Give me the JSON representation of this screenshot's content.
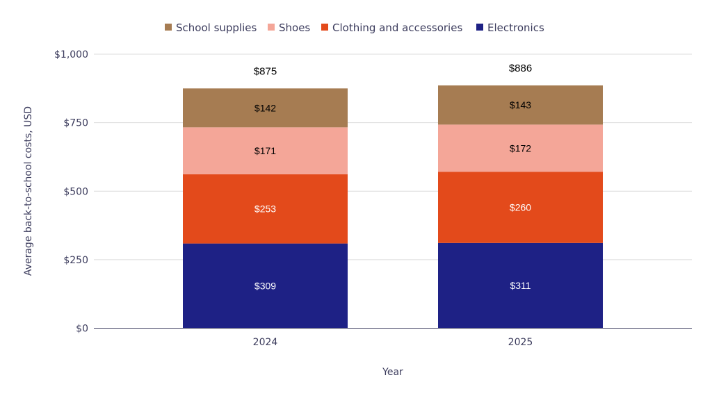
{
  "chart_data": {
    "type": "bar",
    "stacked": true,
    "categories": [
      "2024",
      "2025"
    ],
    "series": [
      {
        "name": "Electronics",
        "values": [
          309,
          311
        ],
        "color": "#1e2185",
        "label_color": "#ffffff"
      },
      {
        "name": "Clothing and accessories",
        "values": [
          253,
          260
        ],
        "color": "#e34a1b",
        "label_color": "#ffffff"
      },
      {
        "name": "Shoes",
        "values": [
          171,
          172
        ],
        "color": "#f4a698",
        "label_color": "#000000"
      },
      {
        "name": "School supplies",
        "values": [
          142,
          143
        ],
        "color": "#a67c52",
        "label_color": "#000000"
      }
    ],
    "data_labels": [
      [
        "$309",
        "$311"
      ],
      [
        "$253",
        "$260"
      ],
      [
        "$171",
        "$172"
      ],
      [
        "$142",
        "$143"
      ]
    ],
    "totals": [
      "$875",
      "$886"
    ],
    "legend_order": [
      "School supplies",
      "Shoes",
      "Clothing and accessories",
      "Electronics"
    ],
    "legend_placement": "top",
    "xlabel": "Year",
    "ylabel": "Average back-to-school costs, USD",
    "ylim": [
      0,
      1000
    ],
    "yticks": [
      0,
      250,
      500,
      750,
      1000
    ],
    "ytick_labels": [
      "$0",
      "$250",
      "$500",
      "$750",
      "$1,000"
    ],
    "grid": true
  }
}
